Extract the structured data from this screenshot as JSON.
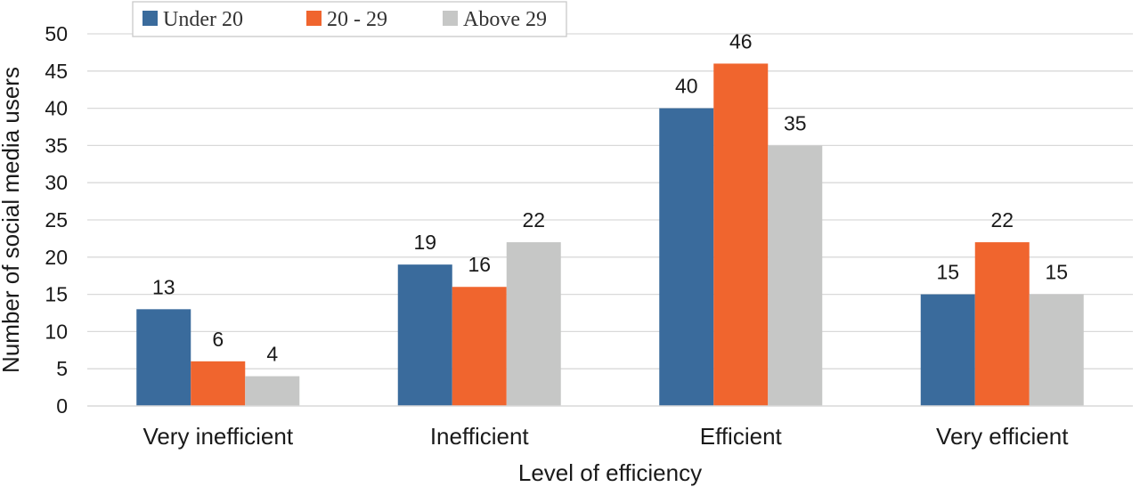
{
  "chart_data": {
    "type": "bar",
    "title": "",
    "xlabel": "Level of efficiency",
    "ylabel": "Number of social media users",
    "categories": [
      "Very inefficient",
      "Inefficient",
      "Efficient",
      "Very efficient"
    ],
    "series": [
      {
        "name": "Under 20",
        "color": "#3a6b9c",
        "values": [
          13,
          19,
          40,
          15
        ]
      },
      {
        "name": "20 - 29",
        "color": "#f0652e",
        "values": [
          6,
          16,
          46,
          22
        ]
      },
      {
        "name": "Above 29",
        "color": "#c6c7c6",
        "values": [
          4,
          22,
          35,
          15
        ]
      }
    ],
    "ylim": [
      0,
      50
    ],
    "yticks": [
      0,
      5,
      10,
      15,
      20,
      25,
      30,
      35,
      40,
      45,
      50
    ],
    "grid": true,
    "legend_position": "top-left",
    "data_labels": true
  }
}
